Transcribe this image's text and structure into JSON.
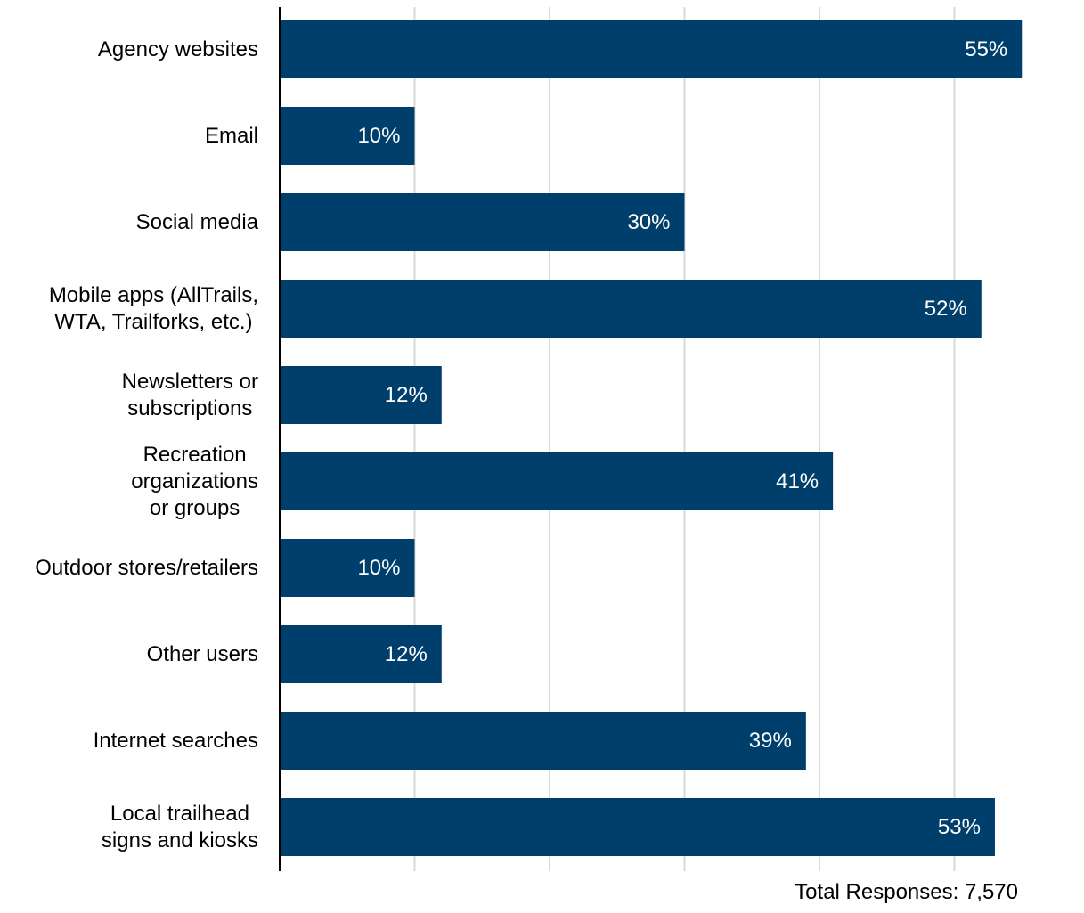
{
  "chart_data": {
    "type": "bar",
    "orientation": "horizontal",
    "categories": [
      [
        "Agency websites"
      ],
      [
        "Email"
      ],
      [
        "Social media"
      ],
      [
        "Mobile apps (AllTrails,",
        "WTA, Trailforks, etc.)"
      ],
      [
        "Newsletters or",
        "subscriptions"
      ],
      [
        "Recreation",
        "organizations",
        "or groups"
      ],
      [
        "Outdoor stores/retailers"
      ],
      [
        "Other users"
      ],
      [
        "Internet searches"
      ],
      [
        "Local trailhead",
        "signs and kiosks"
      ]
    ],
    "values": [
      55,
      10,
      30,
      52,
      12,
      41,
      10,
      12,
      39,
      53
    ],
    "data_labels": [
      "55%",
      "10%",
      "30%",
      "52%",
      "12%",
      "41%",
      "10%",
      "12%",
      "39%",
      "53%"
    ],
    "xlim": [
      0,
      60
    ],
    "grid": true,
    "bar_color": "#003f6b",
    "grid_color": "#d9d9d9",
    "footer_note": "Total Responses: 7,570"
  }
}
